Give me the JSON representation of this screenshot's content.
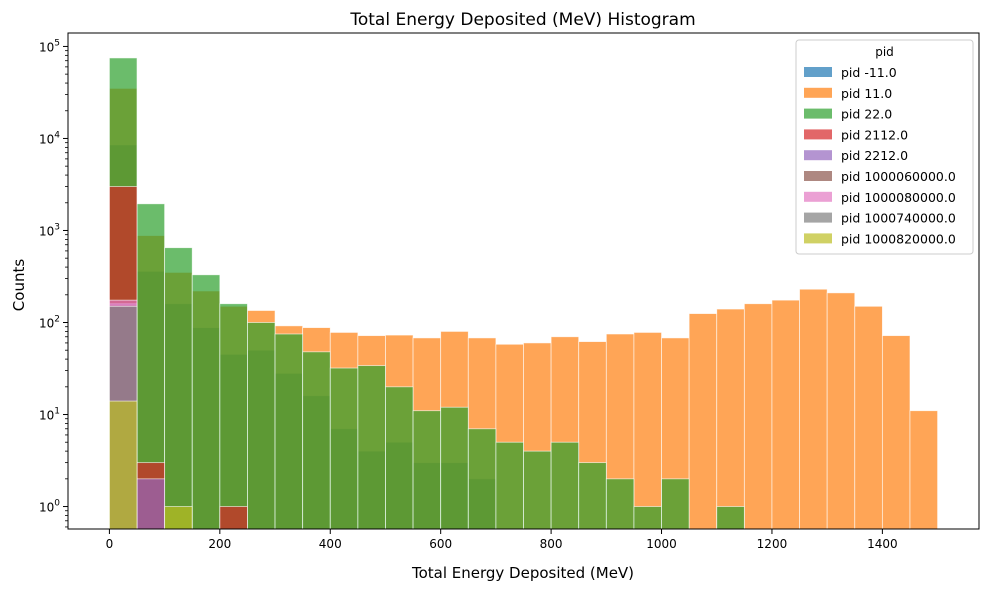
{
  "chart_data": {
    "type": "bar",
    "title": "Total Energy Deposited (MeV) Histogram",
    "xlabel": "Total Energy Deposited (MeV)",
    "ylabel": "Counts",
    "x_scale": "linear",
    "y_scale": "log",
    "xlim": [
      -75,
      1575
    ],
    "ylim": [
      0.57,
      140000
    ],
    "x_ticks": [
      0,
      200,
      400,
      600,
      800,
      1000,
      1200,
      1400
    ],
    "y_ticks": [
      {
        "value": 1,
        "label_base": "10",
        "label_exp": "0"
      },
      {
        "value": 10,
        "label_base": "10",
        "label_exp": "1"
      },
      {
        "value": 100,
        "label_base": "10",
        "label_exp": "2"
      },
      {
        "value": 1000,
        "label_base": "10",
        "label_exp": "3"
      },
      {
        "value": 10000,
        "label_base": "10",
        "label_exp": "4"
      },
      {
        "value": 100000,
        "label_base": "10",
        "label_exp": "5"
      }
    ],
    "bin_width": 50,
    "bin_starts": [
      0,
      50,
      100,
      150,
      200,
      250,
      300,
      350,
      400,
      450,
      500,
      550,
      600,
      650,
      700,
      750,
      800,
      850,
      900,
      950,
      1000,
      1050,
      1100,
      1150,
      1200,
      1250,
      1300,
      1350,
      1400,
      1450
    ],
    "grid": false,
    "legend": {
      "title": "pid",
      "placement": "top-right"
    },
    "series": [
      {
        "name": "pid -11.0",
        "color": "#1f77b4",
        "values": [
          8500,
          360,
          160,
          88,
          45,
          50,
          28,
          16,
          7,
          4,
          5,
          3,
          3,
          2,
          0,
          0,
          0,
          0,
          0,
          0,
          0,
          0,
          0,
          0,
          0,
          0,
          0,
          0,
          0,
          0
        ]
      },
      {
        "name": "pid 11.0",
        "color": "#ff7f0e",
        "values": [
          35000,
          880,
          350,
          220,
          150,
          135,
          92,
          88,
          78,
          72,
          73,
          68,
          80,
          68,
          58,
          60,
          70,
          62,
          75,
          78,
          68,
          125,
          140,
          160,
          175,
          230,
          210,
          150,
          72,
          11
        ]
      },
      {
        "name": "pid 22.0",
        "color": "#2ca02c",
        "values": [
          75000,
          1950,
          650,
          330,
          160,
          100,
          75,
          48,
          32,
          34,
          20,
          11,
          12,
          7,
          5,
          4,
          5,
          3,
          2,
          1,
          2,
          0,
          1,
          0,
          0,
          0,
          0,
          0,
          0,
          0
        ]
      },
      {
        "name": "pid 2112.0",
        "color": "#d62728",
        "values": [
          3000,
          3,
          0,
          0,
          1,
          0,
          0,
          0,
          0,
          0,
          0,
          0,
          0,
          0,
          0,
          0,
          0,
          0,
          0,
          0,
          0,
          0,
          0,
          0,
          0,
          0,
          0,
          0,
          0,
          0
        ]
      },
      {
        "name": "pid 2212.0",
        "color": "#9467bd",
        "values": [
          160,
          2,
          0,
          0,
          0,
          0,
          0,
          0,
          0,
          0,
          0,
          0,
          0,
          0,
          0,
          0,
          0,
          0,
          0,
          0,
          0,
          0,
          0,
          0,
          0,
          0,
          0,
          0,
          0,
          0
        ]
      },
      {
        "name": "pid 1000060000.0",
        "color": "#8c564b",
        "values": [
          155,
          0,
          0,
          0,
          0,
          0,
          0,
          0,
          0,
          0,
          0,
          0,
          0,
          0,
          0,
          0,
          0,
          0,
          0,
          0,
          0,
          0,
          0,
          0,
          0,
          0,
          0,
          0,
          0,
          0
        ]
      },
      {
        "name": "pid 1000080000.0",
        "color": "#e377c2",
        "values": [
          175,
          0,
          0,
          0,
          0,
          0,
          0,
          0,
          0,
          0,
          0,
          0,
          0,
          0,
          0,
          0,
          0,
          0,
          0,
          0,
          0,
          0,
          0,
          0,
          0,
          0,
          0,
          0,
          0,
          0
        ]
      },
      {
        "name": "pid 1000740000.0",
        "color": "#7f7f7f",
        "values": [
          150,
          0,
          0,
          0,
          0,
          0,
          0,
          0,
          0,
          0,
          0,
          0,
          0,
          0,
          0,
          0,
          0,
          0,
          0,
          0,
          0,
          0,
          0,
          0,
          0,
          0,
          0,
          0,
          0,
          0
        ]
      },
      {
        "name": "pid 1000820000.0",
        "color": "#bcbd22",
        "values": [
          14,
          0,
          1,
          0,
          0,
          0,
          0,
          0,
          0,
          0,
          0,
          0,
          0,
          0,
          0,
          0,
          0,
          0,
          0,
          0,
          0,
          0,
          0,
          0,
          0,
          0,
          0,
          0,
          0,
          0
        ]
      }
    ]
  }
}
